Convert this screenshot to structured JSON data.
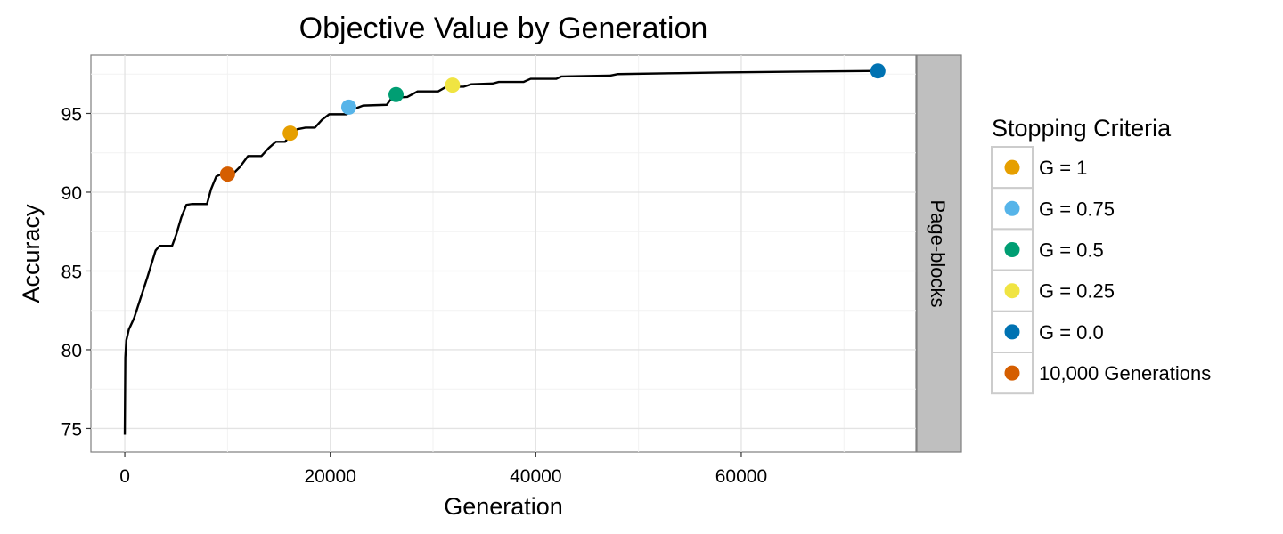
{
  "chart_data": {
    "type": "line",
    "title": "Objective Value by Generation",
    "xlabel": "Generation",
    "ylabel": "Accuracy",
    "xlim": [
      -3300,
      77000
    ],
    "ylim": [
      73.5,
      98.7
    ],
    "x_ticks": [
      0,
      20000,
      40000,
      60000
    ],
    "x_tick_labels": [
      "0",
      "20000",
      "40000",
      "60000"
    ],
    "y_ticks": [
      75,
      80,
      85,
      90,
      95
    ],
    "y_tick_labels": [
      "75",
      "80",
      "85",
      "90",
      "95"
    ],
    "grid": true,
    "facet_label": "Page-blocks",
    "legend": {
      "title": "Stopping Criteria",
      "placement": "right",
      "items": [
        {
          "label": "G = 1",
          "color": "#E69F00"
        },
        {
          "label": "G = 0.75",
          "color": "#56B4E9"
        },
        {
          "label": "G = 0.5",
          "color": "#009E73"
        },
        {
          "label": "G = 0.25",
          "color": "#F0E442"
        },
        {
          "label": "G = 0.0",
          "color": "#0072B2"
        },
        {
          "label": "10,000 Generations",
          "color": "#D55E00"
        }
      ]
    },
    "series": [
      {
        "color": "#000000",
        "points": [
          [
            0,
            74.6
          ],
          [
            50,
            79.5
          ],
          [
            150,
            80.6
          ],
          [
            400,
            81.3
          ],
          [
            900,
            82.0
          ],
          [
            1500,
            83.2
          ],
          [
            2200,
            84.6
          ],
          [
            3000,
            86.3
          ],
          [
            3400,
            86.6
          ],
          [
            4600,
            86.6
          ],
          [
            5000,
            87.3
          ],
          [
            5500,
            88.4
          ],
          [
            6000,
            89.2
          ],
          [
            6500,
            89.25
          ],
          [
            8000,
            89.25
          ],
          [
            8400,
            90.2
          ],
          [
            8900,
            91.0
          ],
          [
            9400,
            91.15
          ],
          [
            10500,
            91.15
          ],
          [
            11200,
            91.6
          ],
          [
            12000,
            92.3
          ],
          [
            13300,
            92.3
          ],
          [
            14000,
            92.8
          ],
          [
            14700,
            93.2
          ],
          [
            15600,
            93.2
          ],
          [
            16200,
            93.7
          ],
          [
            16800,
            94.0
          ],
          [
            17600,
            94.1
          ],
          [
            18500,
            94.1
          ],
          [
            19200,
            94.6
          ],
          [
            19900,
            94.95
          ],
          [
            21600,
            94.95
          ],
          [
            22400,
            95.3
          ],
          [
            23200,
            95.5
          ],
          [
            25500,
            95.55
          ],
          [
            26000,
            96.0
          ],
          [
            27500,
            96.05
          ],
          [
            28500,
            96.4
          ],
          [
            30500,
            96.4
          ],
          [
            31300,
            96.7
          ],
          [
            33000,
            96.7
          ],
          [
            33700,
            96.85
          ],
          [
            35800,
            96.9
          ],
          [
            36400,
            97.0
          ],
          [
            38800,
            97.0
          ],
          [
            39500,
            97.2
          ],
          [
            42000,
            97.2
          ],
          [
            42500,
            97.35
          ],
          [
            47200,
            97.4
          ],
          [
            48000,
            97.5
          ],
          [
            53000,
            97.55
          ],
          [
            58000,
            97.6
          ],
          [
            65000,
            97.65
          ],
          [
            73300,
            97.7
          ]
        ]
      }
    ],
    "markers": [
      {
        "label": "10,000 Generations",
        "x": 10000,
        "y": 91.15,
        "color": "#D55E00"
      },
      {
        "label": "G = 1",
        "x": 16100,
        "y": 93.75,
        "color": "#E69F00"
      },
      {
        "label": "G = 0.75",
        "x": 21800,
        "y": 95.4,
        "color": "#56B4E9"
      },
      {
        "label": "G = 0.5",
        "x": 26400,
        "y": 96.2,
        "color": "#009E73"
      },
      {
        "label": "G = 0.25",
        "x": 31900,
        "y": 96.8,
        "color": "#F0E442"
      },
      {
        "label": "G = 0.0",
        "x": 73300,
        "y": 97.7,
        "color": "#0072B2"
      }
    ]
  }
}
